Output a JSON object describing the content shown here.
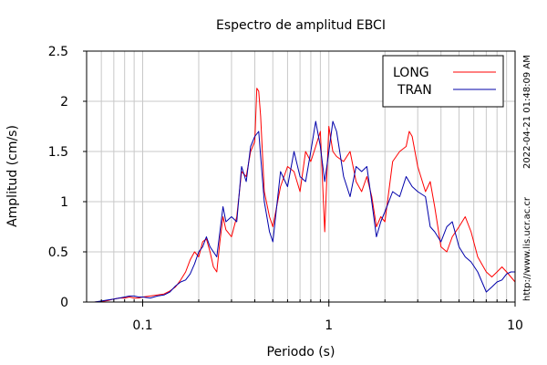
{
  "chart_data": {
    "type": "line",
    "title": "Espectro de amplitud EBCI",
    "xlabel": "Periodo (s)",
    "ylabel": "Amplitud (cm/s)",
    "x_scale": "log",
    "xlim": [
      0.05,
      10
    ],
    "ylim": [
      0,
      2.5
    ],
    "x_ticks": [
      {
        "value": 0.1,
        "label": "0.1"
      },
      {
        "value": 1,
        "label": "1"
      },
      {
        "value": 10,
        "label": "10"
      }
    ],
    "y_ticks": [
      {
        "value": 0,
        "label": "0"
      },
      {
        "value": 0.5,
        "label": "0.5"
      },
      {
        "value": 1,
        "label": "1"
      },
      {
        "value": 1.5,
        "label": "1.5"
      },
      {
        "value": 2,
        "label": "2"
      },
      {
        "value": 2.5,
        "label": "2.5"
      }
    ],
    "grid": true,
    "legend_position": "top-right",
    "side_label_top": "2022-04-21 01:48:09 AM",
    "side_label_bottom": "http://www.lis.ucr.ac.cr",
    "series": [
      {
        "name": "LONG",
        "color": "#ff0000",
        "points": [
          [
            0.055,
            0.0
          ],
          [
            0.06,
            0.005
          ],
          [
            0.065,
            0.015
          ],
          [
            0.07,
            0.03
          ],
          [
            0.075,
            0.04
          ],
          [
            0.08,
            0.04
          ],
          [
            0.085,
            0.05
          ],
          [
            0.09,
            0.04
          ],
          [
            0.095,
            0.04
          ],
          [
            0.1,
            0.05
          ],
          [
            0.11,
            0.06
          ],
          [
            0.12,
            0.07
          ],
          [
            0.13,
            0.08
          ],
          [
            0.14,
            0.11
          ],
          [
            0.15,
            0.15
          ],
          [
            0.16,
            0.22
          ],
          [
            0.17,
            0.3
          ],
          [
            0.18,
            0.42
          ],
          [
            0.19,
            0.5
          ],
          [
            0.2,
            0.45
          ],
          [
            0.21,
            0.6
          ],
          [
            0.22,
            0.63
          ],
          [
            0.23,
            0.5
          ],
          [
            0.24,
            0.35
          ],
          [
            0.25,
            0.3
          ],
          [
            0.26,
            0.6
          ],
          [
            0.27,
            0.85
          ],
          [
            0.28,
            0.72
          ],
          [
            0.3,
            0.65
          ],
          [
            0.32,
            0.85
          ],
          [
            0.34,
            1.3
          ],
          [
            0.36,
            1.25
          ],
          [
            0.38,
            1.5
          ],
          [
            0.4,
            1.6
          ],
          [
            0.41,
            2.13
          ],
          [
            0.42,
            2.1
          ],
          [
            0.43,
            1.85
          ],
          [
            0.45,
            1.1
          ],
          [
            0.48,
            0.85
          ],
          [
            0.5,
            0.75
          ],
          [
            0.55,
            1.15
          ],
          [
            0.6,
            1.35
          ],
          [
            0.65,
            1.3
          ],
          [
            0.7,
            1.1
          ],
          [
            0.75,
            1.5
          ],
          [
            0.8,
            1.4
          ],
          [
            0.85,
            1.55
          ],
          [
            0.9,
            1.7
          ],
          [
            0.95,
            0.7
          ],
          [
            1.0,
            1.75
          ],
          [
            1.05,
            1.5
          ],
          [
            1.1,
            1.45
          ],
          [
            1.2,
            1.4
          ],
          [
            1.3,
            1.5
          ],
          [
            1.4,
            1.2
          ],
          [
            1.5,
            1.1
          ],
          [
            1.6,
            1.25
          ],
          [
            1.7,
            1.05
          ],
          [
            1.8,
            0.75
          ],
          [
            1.9,
            0.85
          ],
          [
            2.0,
            0.8
          ],
          [
            2.2,
            1.4
          ],
          [
            2.4,
            1.5
          ],
          [
            2.6,
            1.55
          ],
          [
            2.7,
            1.7
          ],
          [
            2.8,
            1.65
          ],
          [
            3.0,
            1.35
          ],
          [
            3.3,
            1.1
          ],
          [
            3.5,
            1.2
          ],
          [
            3.7,
            0.95
          ],
          [
            4.0,
            0.55
          ],
          [
            4.3,
            0.5
          ],
          [
            4.6,
            0.65
          ],
          [
            5.0,
            0.75
          ],
          [
            5.4,
            0.85
          ],
          [
            5.8,
            0.7
          ],
          [
            6.3,
            0.45
          ],
          [
            7.0,
            0.3
          ],
          [
            7.5,
            0.25
          ],
          [
            8.0,
            0.3
          ],
          [
            8.5,
            0.35
          ],
          [
            9.0,
            0.3
          ],
          [
            9.5,
            0.25
          ],
          [
            10.0,
            0.2
          ]
        ]
      },
      {
        "name": "TRAN",
        "color": "#0000aa",
        "points": [
          [
            0.055,
            0.0
          ],
          [
            0.06,
            0.01
          ],
          [
            0.065,
            0.02
          ],
          [
            0.07,
            0.03
          ],
          [
            0.075,
            0.04
          ],
          [
            0.08,
            0.05
          ],
          [
            0.085,
            0.06
          ],
          [
            0.09,
            0.06
          ],
          [
            0.095,
            0.05
          ],
          [
            0.1,
            0.05
          ],
          [
            0.11,
            0.04
          ],
          [
            0.12,
            0.06
          ],
          [
            0.13,
            0.07
          ],
          [
            0.14,
            0.1
          ],
          [
            0.15,
            0.16
          ],
          [
            0.16,
            0.2
          ],
          [
            0.17,
            0.22
          ],
          [
            0.18,
            0.28
          ],
          [
            0.19,
            0.38
          ],
          [
            0.2,
            0.5
          ],
          [
            0.21,
            0.55
          ],
          [
            0.22,
            0.65
          ],
          [
            0.23,
            0.55
          ],
          [
            0.24,
            0.5
          ],
          [
            0.25,
            0.45
          ],
          [
            0.26,
            0.7
          ],
          [
            0.27,
            0.95
          ],
          [
            0.28,
            0.8
          ],
          [
            0.3,
            0.85
          ],
          [
            0.32,
            0.8
          ],
          [
            0.34,
            1.35
          ],
          [
            0.36,
            1.2
          ],
          [
            0.38,
            1.55
          ],
          [
            0.4,
            1.65
          ],
          [
            0.42,
            1.7
          ],
          [
            0.43,
            1.45
          ],
          [
            0.45,
            1.0
          ],
          [
            0.48,
            0.7
          ],
          [
            0.5,
            0.6
          ],
          [
            0.55,
            1.3
          ],
          [
            0.6,
            1.15
          ],
          [
            0.65,
            1.5
          ],
          [
            0.7,
            1.25
          ],
          [
            0.75,
            1.2
          ],
          [
            0.8,
            1.5
          ],
          [
            0.85,
            1.8
          ],
          [
            0.9,
            1.55
          ],
          [
            0.95,
            1.2
          ],
          [
            1.0,
            1.5
          ],
          [
            1.05,
            1.8
          ],
          [
            1.1,
            1.7
          ],
          [
            1.2,
            1.25
          ],
          [
            1.3,
            1.05
          ],
          [
            1.4,
            1.35
          ],
          [
            1.5,
            1.3
          ],
          [
            1.6,
            1.35
          ],
          [
            1.7,
            1.0
          ],
          [
            1.8,
            0.65
          ],
          [
            1.9,
            0.8
          ],
          [
            2.0,
            0.9
          ],
          [
            2.2,
            1.1
          ],
          [
            2.4,
            1.05
          ],
          [
            2.6,
            1.25
          ],
          [
            2.8,
            1.15
          ],
          [
            3.0,
            1.1
          ],
          [
            3.3,
            1.05
          ],
          [
            3.5,
            0.75
          ],
          [
            3.7,
            0.7
          ],
          [
            4.0,
            0.6
          ],
          [
            4.3,
            0.75
          ],
          [
            4.6,
            0.8
          ],
          [
            5.0,
            0.55
          ],
          [
            5.4,
            0.45
          ],
          [
            5.8,
            0.4
          ],
          [
            6.3,
            0.3
          ],
          [
            7.0,
            0.1
          ],
          [
            7.5,
            0.15
          ],
          [
            8.0,
            0.2
          ],
          [
            8.5,
            0.22
          ],
          [
            9.0,
            0.28
          ],
          [
            9.5,
            0.3
          ],
          [
            10.0,
            0.3
          ]
        ]
      }
    ]
  }
}
